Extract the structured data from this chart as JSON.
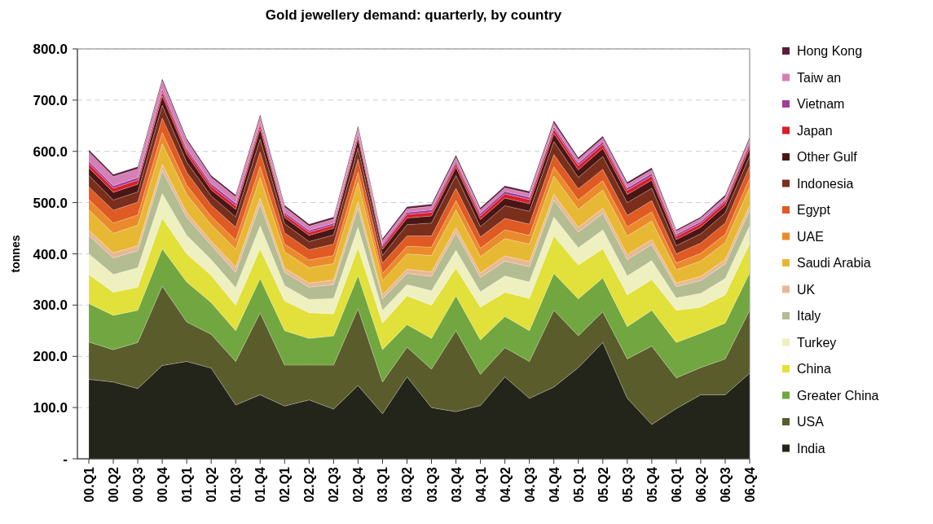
{
  "chart_data": {
    "type": "area",
    "stacked": true,
    "title": "Gold jewellery demand:  quarterly, by country",
    "ylabel": "tonnes",
    "categories": [
      "00.Q1",
      "00.Q2",
      "00.Q3",
      "00.Q4",
      "01.Q1",
      "01.Q2",
      "01.Q3",
      "01.Q4",
      "02.Q1",
      "02.Q2",
      "02.Q3",
      "02.Q4",
      "03.Q1",
      "03.Q2",
      "03.Q3",
      "03.Q4",
      "04.Q1",
      "04.Q2",
      "04.Q3",
      "04.Q4",
      "05.Q1",
      "05.Q2",
      "05.Q3",
      "05.Q4",
      "06.Q1",
      "06.Q2",
      "06.Q3",
      "06.Q4"
    ],
    "ylim": [
      0,
      800
    ],
    "yticks": [
      {
        "value": 0,
        "label": "-"
      },
      {
        "value": 100,
        "label": "100.0"
      },
      {
        "value": 200,
        "label": "200.0"
      },
      {
        "value": 300,
        "label": "300.0"
      },
      {
        "value": 400,
        "label": "400.0"
      },
      {
        "value": 500,
        "label": "500.0"
      },
      {
        "value": 600,
        "label": "600.0"
      },
      {
        "value": 700,
        "label": "700.0"
      },
      {
        "value": 800,
        "label": "800.0"
      }
    ],
    "grid": "y",
    "legend": "right",
    "series": [
      {
        "name": "India",
        "color": "#23251a",
        "values": [
          155,
          150,
          137,
          182,
          190,
          177,
          105,
          125,
          103,
          115,
          97,
          143,
          88,
          160,
          100,
          92,
          104,
          160,
          118,
          140,
          178,
          227,
          118,
          67,
          98,
          125,
          125,
          167
        ]
      },
      {
        "name": "USA",
        "color": "#5a5c2c",
        "values": [
          73,
          63,
          90,
          155,
          77,
          66,
          85,
          160,
          80,
          68,
          86,
          150,
          62,
          58,
          75,
          158,
          61,
          57,
          72,
          150,
          62,
          60,
          77,
          153,
          60,
          53,
          70,
          123
        ]
      },
      {
        "name": "Greater China",
        "color": "#72a640",
        "values": [
          75,
          67,
          63,
          73,
          78,
          62,
          60,
          67,
          67,
          52,
          57,
          65,
          63,
          44,
          60,
          68,
          67,
          61,
          60,
          72,
          72,
          66,
          63,
          70,
          69,
          67,
          70,
          73
        ]
      },
      {
        "name": "China",
        "color": "#e2e03a",
        "values": [
          57,
          45,
          45,
          60,
          55,
          53,
          50,
          58,
          58,
          50,
          43,
          54,
          52,
          56,
          65,
          54,
          64,
          47,
          63,
          73,
          66,
          57,
          62,
          60,
          63,
          51,
          55,
          57
        ]
      },
      {
        "name": "Turkey",
        "color": "#eef0c0",
        "values": [
          40,
          35,
          38,
          48,
          36,
          31,
          34,
          45,
          30,
          26,
          30,
          40,
          25,
          22,
          28,
          35,
          30,
          32,
          32,
          37,
          34,
          37,
          37,
          37,
          24,
          27,
          32,
          35
        ]
      },
      {
        "name": "Italy",
        "color": "#b4bc92",
        "values": [
          36,
          32,
          33,
          45,
          35,
          28,
          30,
          42,
          26,
          24,
          27,
          38,
          22,
          22,
          28,
          34,
          28,
          29,
          30,
          33,
          30,
          32,
          32,
          31,
          22,
          25,
          28,
          30
        ]
      },
      {
        "name": "UK",
        "color": "#e8b896",
        "values": [
          10,
          10,
          10,
          12,
          10,
          8,
          10,
          12,
          8,
          8,
          9,
          12,
          8,
          8,
          9,
          10,
          9,
          10,
          10,
          11,
          10,
          10,
          10,
          10,
          7,
          8,
          9,
          10
        ]
      },
      {
        "name": "Saudi Arabia",
        "color": "#e7b833",
        "values": [
          40,
          38,
          40,
          40,
          35,
          32,
          35,
          40,
          32,
          30,
          32,
          38,
          28,
          30,
          32,
          35,
          32,
          34,
          34,
          36,
          35,
          36,
          36,
          36,
          26,
          30,
          33,
          35
        ]
      },
      {
        "name": "UAE",
        "color": "#e98b2b",
        "values": [
          20,
          20,
          20,
          22,
          18,
          16,
          18,
          22,
          15,
          15,
          16,
          20,
          14,
          15,
          16,
          18,
          16,
          17,
          17,
          18,
          18,
          18,
          18,
          18,
          13,
          15,
          16,
          18
        ]
      },
      {
        "name": "Egypt",
        "color": "#e05a23",
        "values": [
          25,
          25,
          25,
          28,
          25,
          22,
          25,
          28,
          22,
          20,
          22,
          25,
          20,
          20,
          22,
          24,
          22,
          22,
          22,
          24,
          22,
          22,
          22,
          22,
          18,
          20,
          22,
          23
        ]
      },
      {
        "name": "Indonesia",
        "color": "#7a2e1c",
        "values": [
          22,
          20,
          20,
          25,
          20,
          18,
          20,
          25,
          18,
          16,
          18,
          22,
          15,
          22,
          25,
          25,
          20,
          25,
          25,
          25,
          22,
          25,
          25,
          24,
          16,
          18,
          20,
          20
        ]
      },
      {
        "name": "Other Gulf",
        "color": "#4a1614",
        "values": [
          15,
          15,
          15,
          18,
          15,
          12,
          15,
          20,
          12,
          12,
          13,
          18,
          12,
          13,
          14,
          16,
          14,
          15,
          15,
          16,
          15,
          16,
          16,
          16,
          12,
          13,
          14,
          15
        ]
      },
      {
        "name": "Japan",
        "color": "#d81e28",
        "values": [
          8,
          8,
          8,
          8,
          7,
          7,
          7,
          8,
          6,
          6,
          6,
          7,
          6,
          7,
          7,
          7,
          7,
          8,
          8,
          8,
          8,
          8,
          8,
          8,
          6,
          7,
          7,
          7
        ]
      },
      {
        "name": "Vietnam",
        "color": "#a03c9a",
        "values": [
          5,
          5,
          5,
          6,
          5,
          5,
          5,
          5,
          4,
          4,
          4,
          5,
          4,
          4,
          5,
          5,
          5,
          5,
          5,
          5,
          5,
          5,
          5,
          5,
          4,
          4,
          4,
          5
        ]
      },
      {
        "name": "Taiw an",
        "color": "#d47fb5",
        "values": [
          18,
          18,
          17,
          15,
          15,
          12,
          12,
          10,
          10,
          8,
          8,
          8,
          7,
          7,
          7,
          7,
          7,
          7,
          7,
          7,
          7,
          7,
          7,
          7,
          6,
          6,
          6,
          6
        ]
      },
      {
        "name": "Hong Kong",
        "color": "#5a1c3a",
        "values": [
          4,
          4,
          4,
          5,
          4,
          4,
          4,
          5,
          4,
          4,
          4,
          5,
          4,
          4,
          4,
          5,
          4,
          4,
          4,
          5,
          4,
          4,
          4,
          4,
          3,
          3,
          4,
          4
        ]
      }
    ]
  }
}
